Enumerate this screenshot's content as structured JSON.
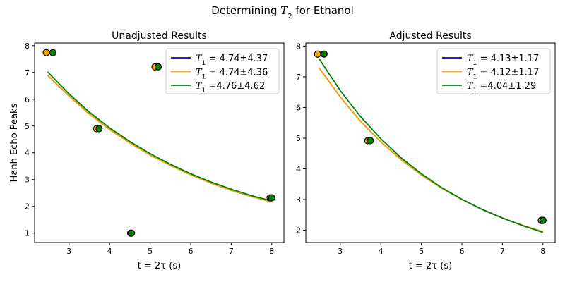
{
  "figure": {
    "suptitle_prefix": "Determining ",
    "suptitle_symbol": "T",
    "suptitle_sub": "2",
    "suptitle_suffix": " for Ethanol"
  },
  "colors": {
    "blue": "#0000cc",
    "orange": "#ffa500",
    "green": "#008000"
  },
  "chart_data": [
    {
      "type": "scatter",
      "title": "Unadjusted Results",
      "xlabel": "t = 2τ (s)",
      "ylabel": "Hanh Echo Peaks",
      "xlim": [
        2.15,
        8.3
      ],
      "ylim": [
        0.65,
        8.1
      ],
      "xticks": [
        "3",
        "4",
        "5",
        "6",
        "7",
        "8"
      ],
      "yticks": [
        "1",
        "2",
        "3",
        "4",
        "5",
        "6",
        "7",
        "8"
      ],
      "legend": "top-right",
      "points_orange": {
        "x": [
          2.44,
          3.68,
          4.52,
          5.12,
          7.96
        ],
        "y": [
          7.74,
          4.9,
          1.0,
          7.21,
          2.32
        ]
      },
      "points_green": {
        "x": [
          2.6,
          3.74,
          4.54,
          5.2,
          8.0
        ],
        "y": [
          7.74,
          4.9,
          1.0,
          7.21,
          2.32
        ]
      },
      "series": [
        {
          "name": "T1 = 4.74±4.37",
          "sym": "T",
          "sub": "1",
          "label": " = 4.74±4.37",
          "color": "#0000cc",
          "x": [
            2.47,
            3.0,
            3.5,
            4.0,
            4.5,
            5.0,
            5.5,
            6.0,
            6.5,
            7.0,
            7.5,
            8.0
          ],
          "y": [
            6.9,
            6.12,
            5.45,
            4.87,
            4.37,
            3.92,
            3.53,
            3.18,
            2.87,
            2.6,
            2.37,
            2.17
          ]
        },
        {
          "name": "T1 = 4.74±4.36",
          "sym": "T",
          "sub": "1",
          "label": " = 4.74±4.36",
          "color": "#ffa500",
          "x": [
            2.47,
            3.0,
            3.5,
            4.0,
            4.5,
            5.0,
            5.5,
            6.0,
            6.5,
            7.0,
            7.5,
            8.0
          ],
          "y": [
            6.9,
            6.12,
            5.45,
            4.87,
            4.37,
            3.92,
            3.53,
            3.18,
            2.87,
            2.6,
            2.37,
            2.17
          ]
        },
        {
          "name": "T1 =4.76±4.62",
          "sym": "T",
          "sub": "1",
          "label": " =4.76±4.62",
          "color": "#008000",
          "x": [
            2.47,
            3.0,
            3.5,
            4.0,
            4.5,
            5.0,
            5.5,
            6.0,
            6.5,
            7.0,
            7.5,
            8.0
          ],
          "y": [
            7.02,
            6.2,
            5.52,
            4.93,
            4.42,
            3.97,
            3.57,
            3.22,
            2.91,
            2.64,
            2.4,
            2.2
          ]
        }
      ]
    },
    {
      "type": "scatter",
      "title": "Adjusted Results",
      "xlabel": "t = 2τ (s)",
      "ylabel": "",
      "xlim": [
        2.15,
        8.3
      ],
      "ylim": [
        1.6,
        8.1
      ],
      "xticks": [
        "3",
        "4",
        "5",
        "6",
        "7",
        "8"
      ],
      "yticks": [
        "2",
        "3",
        "4",
        "5",
        "6",
        "7",
        "8"
      ],
      "legend": "top-right",
      "points_orange": {
        "x": [
          2.44,
          3.68,
          7.96
        ],
        "y": [
          7.74,
          4.92,
          2.32
        ]
      },
      "points_green": {
        "x": [
          2.6,
          3.74,
          8.0
        ],
        "y": [
          7.74,
          4.92,
          2.32
        ]
      },
      "series": [
        {
          "name": "T1 = 4.13±1.17",
          "sym": "T",
          "sub": "1",
          "label": " = 4.13±1.17",
          "color": "#0000cc",
          "x": [
            2.47,
            3.0,
            3.5,
            4.0,
            4.5,
            5.0,
            5.5,
            6.0,
            6.5,
            7.0,
            7.5,
            8.0
          ],
          "y": [
            7.3,
            6.34,
            5.55,
            4.88,
            4.3,
            3.8,
            3.37,
            3.0,
            2.68,
            2.4,
            2.16,
            1.95
          ]
        },
        {
          "name": "T1 = 4.12±1.17",
          "sym": "T",
          "sub": "1",
          "label": " = 4.12±1.17",
          "color": "#ffa500",
          "x": [
            2.47,
            3.0,
            3.5,
            4.0,
            4.5,
            5.0,
            5.5,
            6.0,
            6.5,
            7.0,
            7.5,
            8.0
          ],
          "y": [
            7.3,
            6.34,
            5.55,
            4.88,
            4.3,
            3.8,
            3.37,
            3.0,
            2.68,
            2.4,
            2.16,
            1.95
          ]
        },
        {
          "name": "T1 =4.04±1.29",
          "sym": "T",
          "sub": "1",
          "label": " =4.04±1.29",
          "color": "#008000",
          "x": [
            2.47,
            3.0,
            3.5,
            4.0,
            4.5,
            5.0,
            5.5,
            6.0,
            6.5,
            7.0,
            7.5,
            8.0
          ],
          "y": [
            7.6,
            6.55,
            5.7,
            4.98,
            4.36,
            3.84,
            3.39,
            3.01,
            2.68,
            2.4,
            2.15,
            1.93
          ]
        }
      ]
    }
  ]
}
